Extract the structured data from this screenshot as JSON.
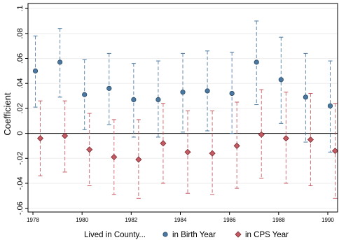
{
  "chart_data": {
    "type": "scatter",
    "ylabel": "Coefficient",
    "xlabel": "",
    "x_ticks": [
      1978,
      1980,
      1982,
      1984,
      1986,
      1988,
      1990
    ],
    "y_ticks": [
      -0.06,
      -0.04,
      -0.02,
      0,
      0.02,
      0.04,
      0.06,
      0.08,
      0.1
    ],
    "y_tick_labels": [
      "-.06",
      "-.04",
      "-.02",
      "0",
      ".02",
      ".04",
      ".06",
      ".08",
      ".1"
    ],
    "xlim": [
      1977.8,
      1990.4
    ],
    "ylim": [
      -0.063,
      0.104
    ],
    "zero_line": true,
    "legend": {
      "title": "Lived in County...",
      "placement": "bottom"
    },
    "series": [
      {
        "name": "in Birth Year",
        "color": "#4a78a0",
        "marker": "circle",
        "points": [
          {
            "x": 1978.1,
            "y": 0.05,
            "lo": 0.021,
            "hi": 0.078
          },
          {
            "x": 1979.1,
            "y": 0.057,
            "lo": 0.029,
            "hi": 0.084
          },
          {
            "x": 1980.1,
            "y": 0.031,
            "lo": 0.003,
            "hi": 0.059
          },
          {
            "x": 1981.1,
            "y": 0.036,
            "lo": 0.007,
            "hi": 0.064
          },
          {
            "x": 1982.1,
            "y": 0.027,
            "lo": -0.003,
            "hi": 0.056
          },
          {
            "x": 1983.1,
            "y": 0.027,
            "lo": -0.003,
            "hi": 0.058
          },
          {
            "x": 1984.1,
            "y": 0.033,
            "lo": 0.001,
            "hi": 0.064
          },
          {
            "x": 1985.1,
            "y": 0.034,
            "lo": 0.002,
            "hi": 0.066
          },
          {
            "x": 1986.1,
            "y": 0.032,
            "lo": 0.0,
            "hi": 0.065
          },
          {
            "x": 1987.1,
            "y": 0.057,
            "lo": 0.023,
            "hi": 0.09
          },
          {
            "x": 1988.1,
            "y": 0.043,
            "lo": 0.008,
            "hi": 0.077
          },
          {
            "x": 1989.1,
            "y": 0.029,
            "lo": -0.007,
            "hi": 0.064
          },
          {
            "x": 1990.1,
            "y": 0.022,
            "lo": -0.015,
            "hi": 0.058
          }
        ]
      },
      {
        "name": "in CPS Year",
        "color": "#c45a62",
        "marker": "diamond",
        "points": [
          {
            "x": 1978.3,
            "y": -0.004,
            "lo": -0.034,
            "hi": 0.026
          },
          {
            "x": 1979.3,
            "y": -0.002,
            "lo": -0.031,
            "hi": 0.026
          },
          {
            "x": 1980.3,
            "y": -0.013,
            "lo": -0.042,
            "hi": 0.016
          },
          {
            "x": 1981.3,
            "y": -0.019,
            "lo": -0.049,
            "hi": 0.011
          },
          {
            "x": 1982.3,
            "y": -0.021,
            "lo": -0.052,
            "hi": 0.011
          },
          {
            "x": 1983.3,
            "y": -0.008,
            "lo": -0.04,
            "hi": 0.024
          },
          {
            "x": 1984.3,
            "y": -0.015,
            "lo": -0.048,
            "hi": 0.018
          },
          {
            "x": 1985.3,
            "y": -0.016,
            "lo": -0.049,
            "hi": 0.018
          },
          {
            "x": 1986.3,
            "y": -0.01,
            "lo": -0.044,
            "hi": 0.025
          },
          {
            "x": 1987.3,
            "y": -0.001,
            "lo": -0.036,
            "hi": 0.035
          },
          {
            "x": 1988.3,
            "y": -0.004,
            "lo": -0.04,
            "hi": 0.033
          },
          {
            "x": 1989.3,
            "y": -0.005,
            "lo": -0.042,
            "hi": 0.032
          },
          {
            "x": 1990.3,
            "y": -0.014,
            "lo": -0.052,
            "hi": 0.024
          }
        ]
      }
    ]
  }
}
